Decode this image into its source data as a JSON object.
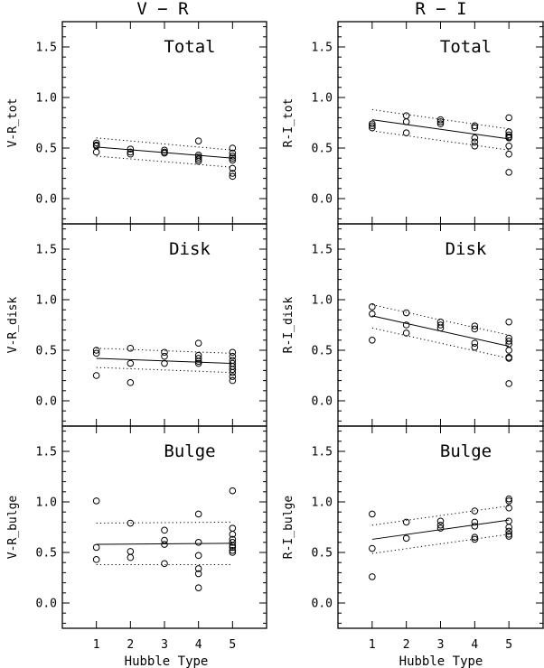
{
  "columns": [
    "V − R",
    "R − I"
  ],
  "x_axis_label": "Hubble Type",
  "chart_data": [
    {
      "type": "scatter",
      "column": "V − R",
      "title": "Total",
      "ylabel": "V-R_tot",
      "xlim": [
        0,
        6
      ],
      "ylim": [
        -0.25,
        1.75
      ],
      "xticks": [
        "1",
        "2",
        "3",
        "4",
        "5"
      ],
      "yticks": [
        "0.0",
        "0.5",
        "1.0",
        "1.5"
      ],
      "points": [
        [
          1,
          0.55
        ],
        [
          1,
          0.53
        ],
        [
          1,
          0.52
        ],
        [
          1,
          0.46
        ],
        [
          2,
          0.49
        ],
        [
          2,
          0.46
        ],
        [
          2,
          0.44
        ],
        [
          3,
          0.48
        ],
        [
          3,
          0.46
        ],
        [
          3,
          0.45
        ],
        [
          4,
          0.57
        ],
        [
          4,
          0.43
        ],
        [
          4,
          0.41
        ],
        [
          4,
          0.39
        ],
        [
          4,
          0.37
        ],
        [
          5,
          0.5
        ],
        [
          5,
          0.45
        ],
        [
          5,
          0.42
        ],
        [
          5,
          0.4
        ],
        [
          5,
          0.38
        ],
        [
          5,
          0.3
        ],
        [
          5,
          0.25
        ],
        [
          5,
          0.22
        ]
      ],
      "fit": {
        "x": [
          1,
          5
        ],
        "y": [
          0.51,
          0.4
        ]
      },
      "band": {
        "upper": [
          0.6,
          0.48
        ],
        "lower": [
          0.42,
          0.31
        ]
      }
    },
    {
      "type": "scatter",
      "column": "R − I",
      "title": "Total",
      "ylabel": "R-I_tot",
      "xlim": [
        0,
        6
      ],
      "ylim": [
        -0.25,
        1.75
      ],
      "xticks": [
        "1",
        "2",
        "3",
        "4",
        "5"
      ],
      "yticks": [
        "0.0",
        "0.5",
        "1.0",
        "1.5"
      ],
      "points": [
        [
          1,
          0.74
        ],
        [
          1,
          0.72
        ],
        [
          1,
          0.7
        ],
        [
          2,
          0.82
        ],
        [
          2,
          0.76
        ],
        [
          2,
          0.65
        ],
        [
          3,
          0.78
        ],
        [
          3,
          0.76
        ],
        [
          3,
          0.74
        ],
        [
          4,
          0.72
        ],
        [
          4,
          0.7
        ],
        [
          4,
          0.6
        ],
        [
          4,
          0.56
        ],
        [
          4,
          0.52
        ],
        [
          5,
          0.8
        ],
        [
          5,
          0.66
        ],
        [
          5,
          0.63
        ],
        [
          5,
          0.61
        ],
        [
          5,
          0.6
        ],
        [
          5,
          0.52
        ],
        [
          5,
          0.44
        ],
        [
          5,
          0.26
        ]
      ],
      "fit": {
        "x": [
          1,
          5
        ],
        "y": [
          0.78,
          0.59
        ]
      },
      "band": {
        "upper": [
          0.88,
          0.69
        ],
        "lower": [
          0.67,
          0.48
        ]
      }
    },
    {
      "type": "scatter",
      "column": "V − R",
      "title": "Disk",
      "ylabel": "V-R_disk",
      "xlim": [
        0,
        6
      ],
      "ylim": [
        -0.25,
        1.75
      ],
      "xticks": [
        "1",
        "2",
        "3",
        "4",
        "5"
      ],
      "yticks": [
        "0.0",
        "0.5",
        "1.0",
        "1.5"
      ],
      "points": [
        [
          1,
          0.5
        ],
        [
          1,
          0.47
        ],
        [
          1,
          0.25
        ],
        [
          2,
          0.52
        ],
        [
          2,
          0.37
        ],
        [
          2,
          0.18
        ],
        [
          3,
          0.48
        ],
        [
          3,
          0.44
        ],
        [
          3,
          0.37
        ],
        [
          4,
          0.57
        ],
        [
          4,
          0.45
        ],
        [
          4,
          0.42
        ],
        [
          4,
          0.39
        ],
        [
          4,
          0.37
        ],
        [
          5,
          0.48
        ],
        [
          5,
          0.44
        ],
        [
          5,
          0.4
        ],
        [
          5,
          0.37
        ],
        [
          5,
          0.34
        ],
        [
          5,
          0.31
        ],
        [
          5,
          0.28
        ],
        [
          5,
          0.24
        ],
        [
          5,
          0.2
        ]
      ],
      "fit": {
        "x": [
          1,
          5
        ],
        "y": [
          0.42,
          0.37
        ]
      },
      "band": {
        "upper": [
          0.52,
          0.47
        ],
        "lower": [
          0.33,
          0.28
        ]
      }
    },
    {
      "type": "scatter",
      "column": "R − I",
      "title": "Disk",
      "ylabel": "R-I_disk",
      "xlim": [
        0,
        6
      ],
      "ylim": [
        -0.25,
        1.75
      ],
      "xticks": [
        "1",
        "2",
        "3",
        "4",
        "5"
      ],
      "yticks": [
        "0.0",
        "0.5",
        "1.0",
        "1.5"
      ],
      "points": [
        [
          1,
          0.93
        ],
        [
          1,
          0.86
        ],
        [
          1,
          0.6
        ],
        [
          2,
          0.87
        ],
        [
          2,
          0.75
        ],
        [
          2,
          0.67
        ],
        [
          3,
          0.78
        ],
        [
          3,
          0.75
        ],
        [
          3,
          0.72
        ],
        [
          4,
          0.74
        ],
        [
          4,
          0.71
        ],
        [
          4,
          0.57
        ],
        [
          4,
          0.53
        ],
        [
          5,
          0.78
        ],
        [
          5,
          0.62
        ],
        [
          5,
          0.59
        ],
        [
          5,
          0.56
        ],
        [
          5,
          0.5
        ],
        [
          5,
          0.43
        ],
        [
          5,
          0.42
        ],
        [
          5,
          0.17
        ]
      ],
      "fit": {
        "x": [
          1,
          5
        ],
        "y": [
          0.84,
          0.54
        ]
      },
      "band": {
        "upper": [
          0.95,
          0.65
        ],
        "lower": [
          0.72,
          0.42
        ]
      }
    },
    {
      "type": "scatter",
      "column": "V − R",
      "title": "Bulge",
      "ylabel": "V-R_bulge",
      "xlim": [
        0,
        6
      ],
      "ylim": [
        -0.25,
        1.75
      ],
      "xticks": [
        "1",
        "2",
        "3",
        "4",
        "5"
      ],
      "yticks": [
        "0.0",
        "0.5",
        "1.0",
        "1.5"
      ],
      "points": [
        [
          1,
          1.01
        ],
        [
          1,
          0.55
        ],
        [
          1,
          0.43
        ],
        [
          2,
          0.79
        ],
        [
          2,
          0.51
        ],
        [
          2,
          0.45
        ],
        [
          3,
          0.72
        ],
        [
          3,
          0.62
        ],
        [
          3,
          0.58
        ],
        [
          3,
          0.39
        ],
        [
          4,
          0.88
        ],
        [
          4,
          0.6
        ],
        [
          4,
          0.47
        ],
        [
          4,
          0.34
        ],
        [
          4,
          0.29
        ],
        [
          4,
          0.15
        ],
        [
          5,
          1.11
        ],
        [
          5,
          0.74
        ],
        [
          5,
          0.68
        ],
        [
          5,
          0.63
        ],
        [
          5,
          0.6
        ],
        [
          5,
          0.57
        ],
        [
          5,
          0.55
        ],
        [
          5,
          0.52
        ],
        [
          5,
          0.5
        ]
      ],
      "fit": {
        "x": [
          1,
          5
        ],
        "y": [
          0.58,
          0.59
        ]
      },
      "band": {
        "upper": [
          0.79,
          0.8
        ],
        "lower": [
          0.38,
          0.38
        ]
      }
    },
    {
      "type": "scatter",
      "column": "R − I",
      "title": "Bulge",
      "ylabel": "R-I_bulge",
      "xlim": [
        0,
        6
      ],
      "ylim": [
        -0.25,
        1.75
      ],
      "xticks": [
        "1",
        "2",
        "3",
        "4",
        "5"
      ],
      "yticks": [
        "0.0",
        "0.5",
        "1.0",
        "1.5"
      ],
      "points": [
        [
          1,
          0.88
        ],
        [
          1,
          0.54
        ],
        [
          1,
          0.26
        ],
        [
          2,
          0.8
        ],
        [
          2,
          0.64
        ],
        [
          3,
          0.81
        ],
        [
          3,
          0.77
        ],
        [
          3,
          0.74
        ],
        [
          4,
          0.91
        ],
        [
          4,
          0.8
        ],
        [
          4,
          0.76
        ],
        [
          4,
          0.65
        ],
        [
          4,
          0.63
        ],
        [
          5,
          1.03
        ],
        [
          5,
          1.01
        ],
        [
          5,
          0.94
        ],
        [
          5,
          0.81
        ],
        [
          5,
          0.75
        ],
        [
          5,
          0.71
        ],
        [
          5,
          0.68
        ],
        [
          5,
          0.66
        ]
      ],
      "fit": {
        "x": [
          1,
          5
        ],
        "y": [
          0.63,
          0.82
        ]
      },
      "band": {
        "upper": [
          0.77,
          0.96
        ],
        "lower": [
          0.49,
          0.68
        ]
      }
    }
  ]
}
